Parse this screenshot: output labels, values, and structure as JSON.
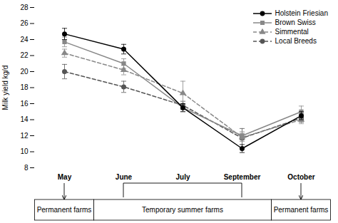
{
  "chart_data": {
    "type": "line",
    "ylabel": "Milk yield kg/d",
    "categories": [
      "May",
      "June",
      "July",
      "September",
      "October"
    ],
    "series": [
      {
        "name": "Holstein Friesian",
        "color": "#000000",
        "marker": "circle",
        "line_style": "solid",
        "values": [
          24.7,
          22.8,
          15.5,
          10.4,
          14.5
        ],
        "errors": [
          0.7,
          0.6,
          0.5,
          0.5,
          0.5
        ]
      },
      {
        "name": "Brown Swiss",
        "color": "#888888",
        "marker": "square",
        "line_style": "solid",
        "values": [
          23.7,
          21.0,
          15.5,
          12.0,
          15.0
        ],
        "errors": [
          0.6,
          0.6,
          0.5,
          0.5,
          0.7
        ]
      },
      {
        "name": "Simmental",
        "color": "#888888",
        "marker": "triangle",
        "line_style": "dashed",
        "values": [
          22.3,
          20.2,
          17.3,
          11.8,
          14.0
        ],
        "errors": [
          0.5,
          0.6,
          1.5,
          0.5,
          0.5
        ]
      },
      {
        "name": "Local Breeds",
        "color": "#555555",
        "marker": "circle",
        "line_style": "dashed",
        "values": [
          20.0,
          18.1,
          15.8,
          11.7,
          14.2
        ],
        "errors": [
          0.9,
          0.7,
          0.5,
          1.2,
          0.5
        ]
      }
    ],
    "ylim": [
      8,
      28
    ],
    "yticks": [
      8,
      10,
      12,
      14,
      16,
      18,
      20,
      22,
      24,
      26,
      28
    ],
    "grid": false,
    "legend": "upper right",
    "annotations": [
      {
        "text": "Permanent farms",
        "categories": [
          "May"
        ]
      },
      {
        "text": "Temporary summer farms",
        "categories": [
          "June",
          "July",
          "September"
        ]
      },
      {
        "text": "Permanent farms",
        "categories": [
          "October"
        ]
      }
    ]
  }
}
